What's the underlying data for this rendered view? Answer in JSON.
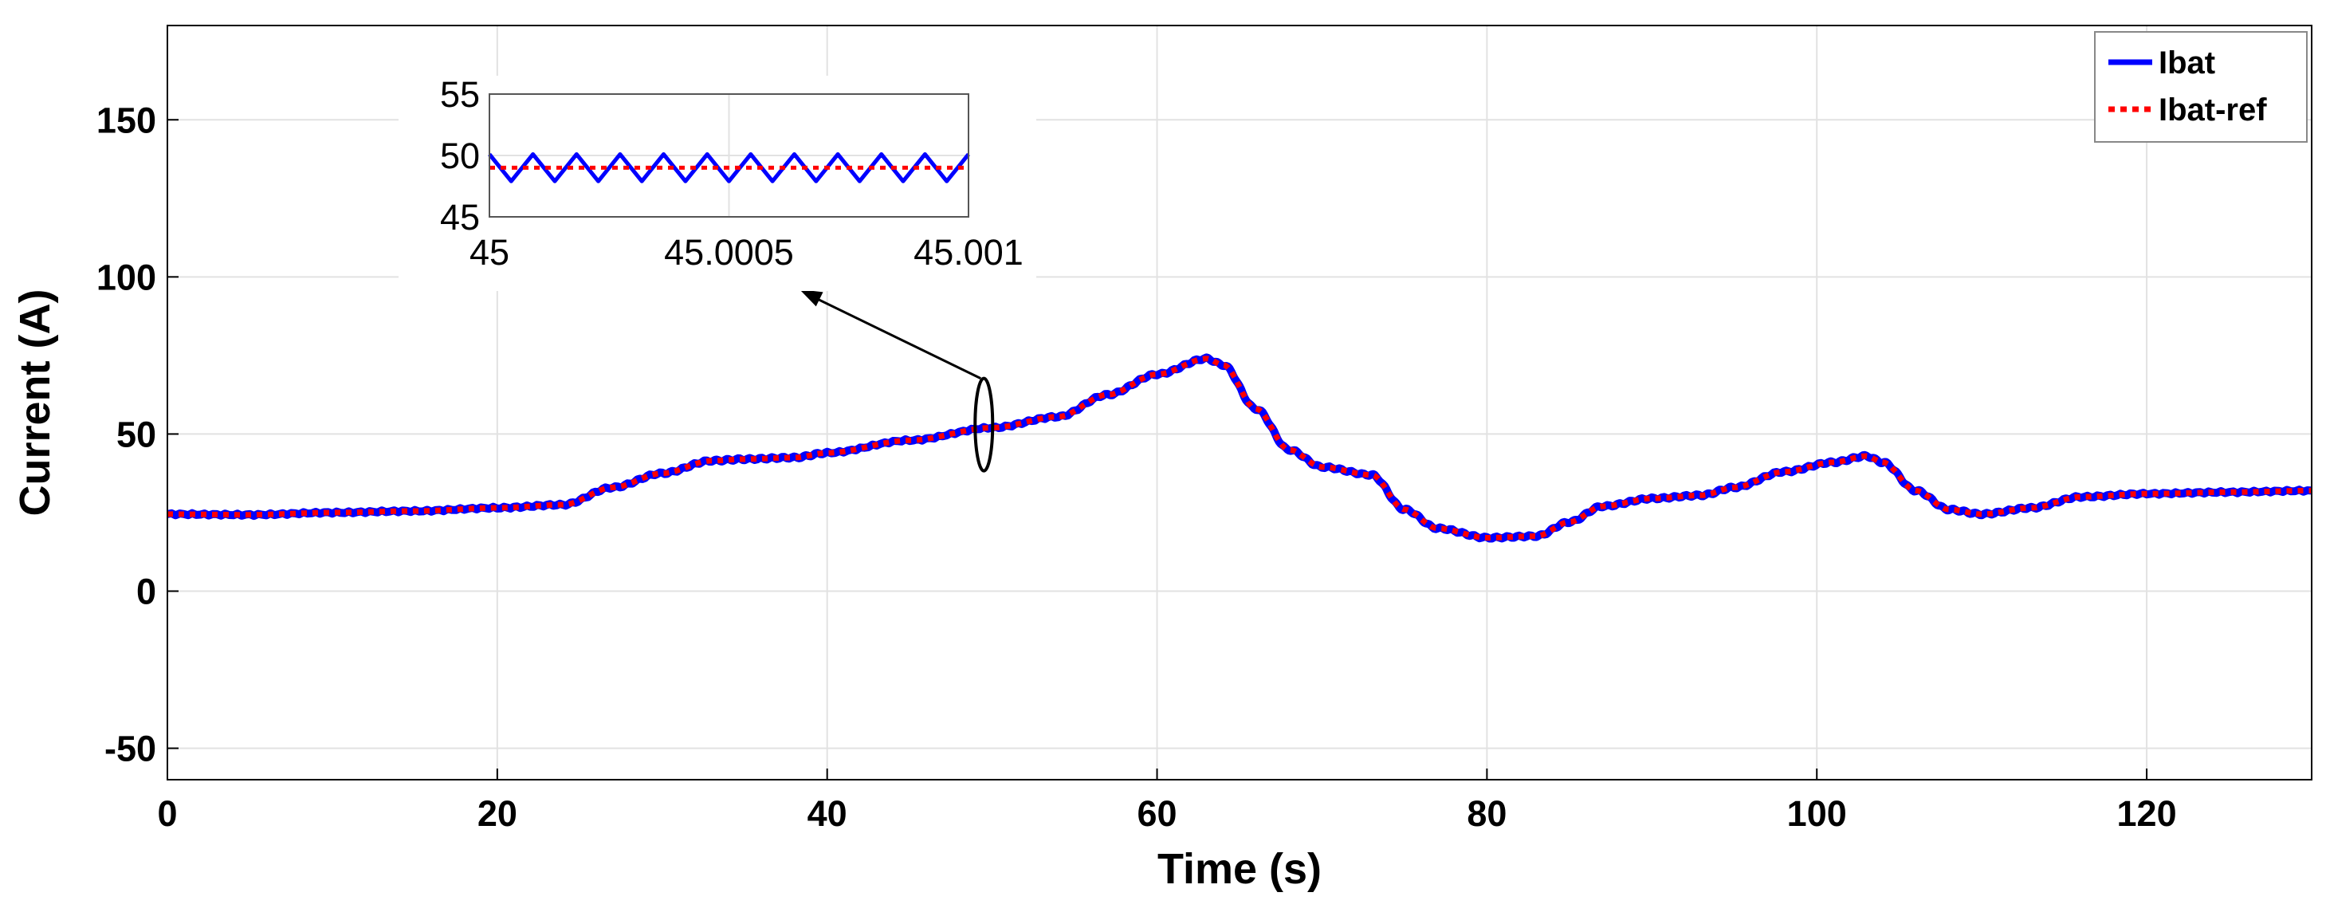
{
  "chart_data": {
    "type": "line",
    "xlabel": "Time (s)",
    "ylabel": "Current (A)",
    "xlim": [
      0,
      130
    ],
    "ylim": [
      -60,
      180
    ],
    "x_ticks": [
      "0",
      "20",
      "40",
      "60",
      "80",
      "100",
      "120"
    ],
    "y_ticks": [
      "-50",
      "0",
      "50",
      "100",
      "150"
    ],
    "grid": true,
    "legend_position": "top-right",
    "series": [
      {
        "name": "Ibat",
        "color": "#0000ff",
        "style": "solid",
        "x": [
          0,
          5,
          10,
          15,
          20,
          24,
          27,
          30,
          33,
          35,
          38,
          40,
          45,
          50,
          54,
          57,
          60,
          63,
          64,
          66,
          68,
          70,
          73,
          75,
          77,
          80,
          83,
          85,
          87,
          90,
          93,
          95,
          98,
          101,
          103,
          104,
          106,
          108,
          110,
          113,
          116,
          120,
          125,
          130
        ],
        "values": [
          24.5,
          24.3,
          25,
          25.5,
          26.5,
          27.5,
          33,
          37.5,
          41.5,
          42,
          42.5,
          44,
          48,
          52,
          55.5,
          62.5,
          69,
          74,
          72,
          58,
          45,
          39.5,
          37,
          26,
          20,
          17,
          17.5,
          22,
          27,
          29.5,
          30.5,
          33,
          38,
          41,
          43,
          41,
          32,
          26,
          24.5,
          26.5,
          30,
          31,
          31.5,
          32
        ]
      },
      {
        "name": "Ibat-ref",
        "color": "#ff0000",
        "style": "dotted",
        "x": [
          0,
          5,
          10,
          15,
          20,
          24,
          27,
          30,
          33,
          35,
          38,
          40,
          45,
          50,
          54,
          57,
          60,
          63,
          64,
          66,
          68,
          70,
          73,
          75,
          77,
          80,
          83,
          85,
          87,
          90,
          93,
          95,
          98,
          101,
          103,
          104,
          106,
          108,
          110,
          113,
          116,
          120,
          125,
          130
        ],
        "values": [
          24.5,
          24.3,
          25,
          25.5,
          26.5,
          27.5,
          33,
          37.5,
          41.5,
          42,
          42.5,
          44,
          48,
          52,
          55.5,
          62.5,
          69,
          74,
          72,
          58,
          45,
          39.5,
          37,
          26,
          20,
          17,
          17.5,
          22,
          27,
          29.5,
          30.5,
          33,
          38,
          41,
          43,
          41,
          32,
          26,
          24.5,
          26.5,
          30,
          31,
          31.5,
          32
        ]
      }
    ],
    "annotation": {
      "type": "zoom-ellipse-arrow",
      "at_x": 49.5,
      "at_y": 53
    },
    "inset": {
      "type": "line",
      "xlim": [
        45,
        45.001
      ],
      "ylim": [
        45,
        55
      ],
      "x_ticks": [
        "45",
        "45.0005",
        "45.001"
      ],
      "y_ticks": [
        "45",
        "50",
        "55"
      ],
      "grid": true,
      "ibat_mean": 49,
      "ibat_amplitude": 1.1,
      "ibat_cycles": 11,
      "ref_value": 49
    }
  }
}
